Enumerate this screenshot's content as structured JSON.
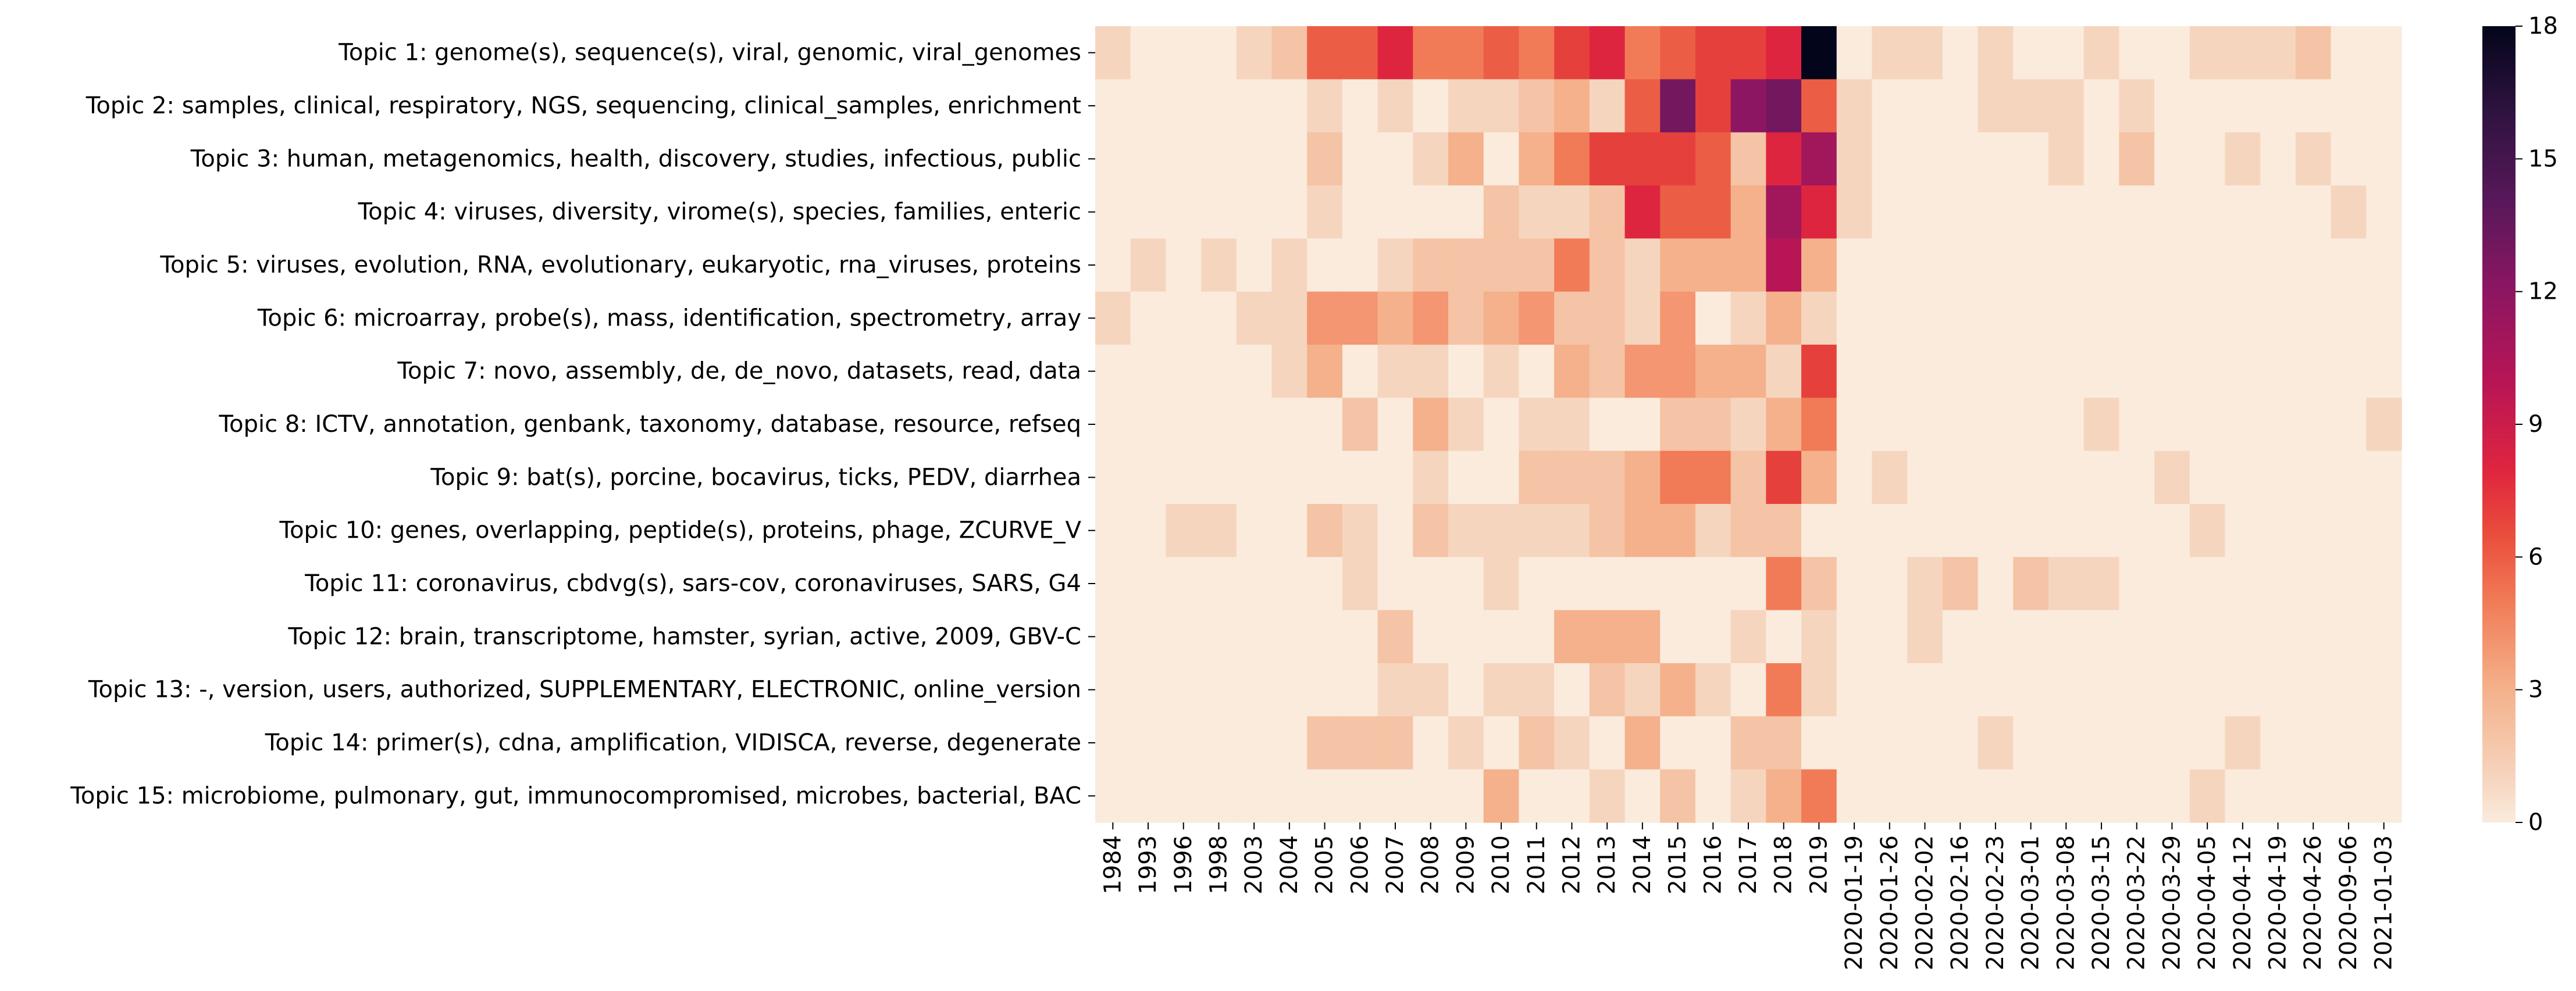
{
  "chart_data": {
    "type": "heatmap",
    "title": "",
    "xlabel": "",
    "ylabel": "",
    "x": [
      "1984",
      "1993",
      "1996",
      "1998",
      "2003",
      "2004",
      "2005",
      "2006",
      "2007",
      "2008",
      "2009",
      "2010",
      "2011",
      "2012",
      "2013",
      "2014",
      "2015",
      "2016",
      "2017",
      "2018",
      "2019",
      "2020-01-19",
      "2020-01-26",
      "2020-02-02",
      "2020-02-16",
      "2020-02-23",
      "2020-03-01",
      "2020-03-08",
      "2020-03-15",
      "2020-03-22",
      "2020-03-29",
      "2020-04-05",
      "2020-04-12",
      "2020-04-19",
      "2020-04-26",
      "2020-09-06",
      "2021-01-03"
    ],
    "y": [
      "Topic 1: genome(s), sequence(s), viral, genomic, viral_genomes",
      "Topic 2: samples, clinical, respiratory, NGS, sequencing, clinical_samples, enrichment",
      "Topic 3: human, metagenomics, health, discovery, studies, infectious, public",
      "Topic 4: viruses, diversity, virome(s), species, families, enteric",
      "Topic 5: viruses, evolution, RNA, evolutionary, eukaryotic, rna_viruses, proteins",
      "Topic 6: microarray, probe(s), mass, identification, spectrometry, array",
      "Topic 7: novo, assembly, de, de_novo, datasets, read, data",
      "Topic 8: ICTV, annotation, genbank, taxonomy, database, resource, refseq",
      "Topic 9: bat(s), porcine, bocavirus, ticks, PEDV, diarrhea",
      "Topic 10: genes, overlapping, peptide(s), proteins, phage, ZCURVE_V",
      "Topic 11: coronavirus, cbdvg(s), sars-cov, coronaviruses, SARS, G4",
      "Topic 12: brain, transcriptome, hamster, syrian, active, 2009, GBV-C",
      "Topic 13: -, version, users, authorized, SUPPLEMENTARY, ELECTRONIC, online_version",
      "Topic 14: primer(s), cdna, amplification, VIDISCA, reverse, degenerate",
      "Topic 15: microbiome, pulmonary, gut, immunocompromised, microbes, bacterial, BAC"
    ],
    "values": [
      [
        1,
        0,
        0,
        0,
        1,
        2,
        6,
        6,
        8,
        5,
        5,
        6,
        5,
        7,
        8,
        5,
        6,
        7,
        7,
        8,
        18,
        0,
        1,
        1,
        0,
        1,
        0,
        0,
        1,
        0,
        0,
        1,
        1,
        1,
        2,
        0,
        0
      ],
      [
        0,
        0,
        0,
        0,
        0,
        0,
        1,
        0,
        1,
        0,
        1,
        1,
        2,
        3,
        1,
        6,
        13,
        7,
        12,
        13,
        6,
        1,
        0,
        0,
        0,
        1,
        1,
        1,
        0,
        1,
        0,
        0,
        0,
        0,
        0,
        0,
        0
      ],
      [
        0,
        0,
        0,
        0,
        0,
        0,
        2,
        0,
        0,
        1,
        3,
        0,
        3,
        5,
        7,
        7,
        7,
        6,
        2,
        8,
        11,
        1,
        0,
        0,
        0,
        0,
        0,
        1,
        0,
        2,
        0,
        0,
        1,
        0,
        1,
        0,
        0
      ],
      [
        0,
        0,
        0,
        0,
        0,
        0,
        1,
        0,
        0,
        0,
        0,
        2,
        1,
        1,
        2,
        8,
        6,
        6,
        3,
        11,
        8,
        1,
        0,
        0,
        0,
        0,
        0,
        0,
        0,
        0,
        0,
        0,
        0,
        0,
        0,
        1,
        0
      ],
      [
        0,
        1,
        0,
        1,
        0,
        1,
        0,
        0,
        1,
        2,
        2,
        2,
        2,
        5,
        2,
        1,
        3,
        3,
        3,
        10,
        3,
        0,
        0,
        0,
        0,
        0,
        0,
        0,
        0,
        0,
        0,
        0,
        0,
        0,
        0,
        0,
        0
      ],
      [
        1,
        0,
        0,
        0,
        1,
        1,
        4,
        4,
        3,
        4,
        2,
        3,
        4,
        2,
        2,
        1,
        4,
        0,
        1,
        3,
        1,
        0,
        0,
        0,
        0,
        0,
        0,
        0,
        0,
        0,
        0,
        0,
        0,
        0,
        0,
        0,
        0
      ],
      [
        0,
        0,
        0,
        0,
        0,
        1,
        3,
        0,
        1,
        1,
        0,
        1,
        0,
        3,
        2,
        4,
        4,
        3,
        3,
        1,
        7,
        0,
        0,
        0,
        0,
        0,
        0,
        0,
        0,
        0,
        0,
        0,
        0,
        0,
        0,
        0,
        0
      ],
      [
        0,
        0,
        0,
        0,
        0,
        0,
        0,
        2,
        0,
        3,
        1,
        0,
        1,
        1,
        0,
        0,
        2,
        2,
        1,
        3,
        5,
        0,
        0,
        0,
        0,
        0,
        0,
        0,
        1,
        0,
        0,
        0,
        0,
        0,
        0,
        0,
        1
      ],
      [
        0,
        0,
        0,
        0,
        0,
        0,
        0,
        0,
        0,
        1,
        0,
        0,
        2,
        2,
        2,
        3,
        5,
        5,
        2,
        7,
        3,
        0,
        1,
        0,
        0,
        0,
        0,
        0,
        0,
        0,
        1,
        0,
        0,
        0,
        0,
        0,
        0
      ],
      [
        0,
        0,
        1,
        1,
        0,
        0,
        2,
        1,
        0,
        2,
        1,
        1,
        1,
        1,
        2,
        3,
        3,
        1,
        2,
        2,
        0,
        0,
        0,
        0,
        0,
        0,
        0,
        0,
        0,
        0,
        0,
        1,
        0,
        0,
        0,
        0,
        0
      ],
      [
        0,
        0,
        0,
        0,
        0,
        0,
        0,
        1,
        0,
        0,
        0,
        1,
        0,
        0,
        0,
        0,
        0,
        0,
        0,
        5,
        2,
        0,
        0,
        1,
        2,
        0,
        2,
        1,
        1,
        0,
        0,
        0,
        0,
        0,
        0,
        0,
        0
      ],
      [
        0,
        0,
        0,
        0,
        0,
        0,
        0,
        0,
        2,
        0,
        0,
        0,
        0,
        3,
        3,
        3,
        0,
        0,
        1,
        0,
        1,
        0,
        0,
        1,
        0,
        0,
        0,
        0,
        0,
        0,
        0,
        0,
        0,
        0,
        0,
        0,
        0
      ],
      [
        0,
        0,
        0,
        0,
        0,
        0,
        0,
        0,
        1,
        1,
        0,
        1,
        1,
        0,
        2,
        1,
        3,
        1,
        0,
        5,
        1,
        0,
        0,
        0,
        0,
        0,
        0,
        0,
        0,
        0,
        0,
        0,
        0,
        0,
        0,
        0,
        0
      ],
      [
        0,
        0,
        0,
        0,
        0,
        0,
        2,
        2,
        2,
        0,
        1,
        0,
        2,
        1,
        0,
        3,
        0,
        0,
        2,
        2,
        0,
        0,
        0,
        0,
        0,
        1,
        0,
        0,
        0,
        0,
        0,
        0,
        1,
        0,
        0,
        0,
        0
      ],
      [
        0,
        0,
        0,
        0,
        0,
        0,
        0,
        0,
        0,
        0,
        0,
        3,
        0,
        0,
        1,
        0,
        2,
        0,
        1,
        3,
        5,
        0,
        0,
        0,
        0,
        0,
        0,
        0,
        0,
        0,
        0,
        1,
        0,
        0,
        0,
        0,
        0
      ]
    ],
    "vmin": 0,
    "vmax": 18,
    "colorbar_ticks": [
      "0",
      "3",
      "6",
      "9",
      "12",
      "15",
      "18"
    ],
    "colormap": "rocket_r",
    "grid": false,
    "legend": "colorbar at right"
  }
}
